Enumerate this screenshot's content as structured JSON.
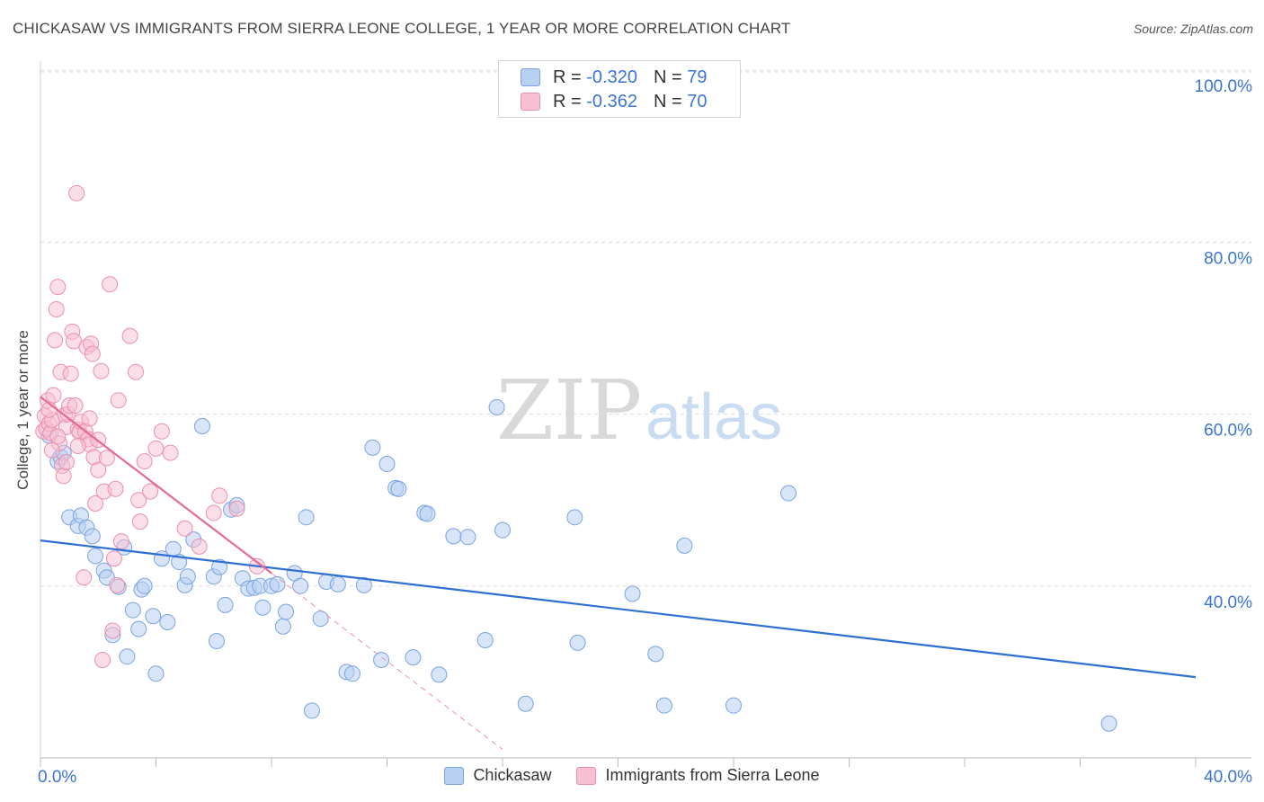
{
  "title": "CHICKASAW VS IMMIGRANTS FROM SIERRA LEONE COLLEGE, 1 YEAR OR MORE CORRELATION CHART",
  "source": "Source: ZipAtlas.com",
  "watermark": {
    "zip": "ZIP",
    "atlas": "atlas"
  },
  "stats": [
    {
      "r_label": "R =",
      "r_value": "-0.320",
      "n_label": "N =",
      "n_value": "79"
    },
    {
      "r_label": "R =",
      "r_value": "-0.362",
      "n_label": "N =",
      "n_value": "70"
    }
  ],
  "colors": {
    "blue_fill": "#b8d0f2",
    "blue_edge": "#7aa3e0",
    "blue_line": "#2e6fd4",
    "pink_fill": "#f7c0d2",
    "pink_edge": "#eb8fae",
    "pink_line": "#e36a94",
    "accent": "#3a74d4"
  },
  "chart_data": {
    "type": "scatter",
    "title": "CHICKASAW VS IMMIGRANTS FROM SIERRA LEONE COLLEGE, 1 YEAR OR MORE CORRELATION CHART",
    "xlabel": "",
    "ylabel": "College, 1 year or more",
    "xlim": [
      0,
      40
    ],
    "ylim": [
      20,
      104
    ],
    "x_tick_labels": [
      {
        "value": 0,
        "label": "0.0%"
      },
      {
        "value": 40,
        "label": "40.0%"
      }
    ],
    "y_tick_labels": [
      {
        "value": 40,
        "label": "40.0%"
      },
      {
        "value": 60,
        "label": "60.0%"
      },
      {
        "value": 80,
        "label": "80.0%"
      },
      {
        "value": 100,
        "label": "100.0%"
      }
    ],
    "legend_position": "bottom",
    "series": [
      {
        "name": "Chickasaw",
        "trend": {
          "x0": 0,
          "y0": 45.3,
          "x1": 40,
          "y1": 29.4
        },
        "points": [
          [
            0.3,
            57.5
          ],
          [
            0.6,
            54.5
          ],
          [
            0.7,
            55.0
          ],
          [
            0.8,
            55.5
          ],
          [
            1.0,
            48.0
          ],
          [
            1.3,
            47.0
          ],
          [
            1.4,
            48.2
          ],
          [
            1.6,
            46.8
          ],
          [
            1.8,
            45.8
          ],
          [
            1.9,
            43.5
          ],
          [
            2.2,
            41.8
          ],
          [
            2.3,
            41.0
          ],
          [
            2.5,
            34.3
          ],
          [
            2.7,
            39.9
          ],
          [
            2.9,
            44.5
          ],
          [
            3.0,
            31.8
          ],
          [
            3.2,
            37.2
          ],
          [
            3.5,
            39.6
          ],
          [
            3.6,
            40.0
          ],
          [
            3.9,
            36.5
          ],
          [
            4.0,
            29.8
          ],
          [
            4.2,
            43.2
          ],
          [
            4.4,
            35.8
          ],
          [
            4.6,
            44.3
          ],
          [
            4.8,
            42.8
          ],
          [
            5.0,
            40.1
          ],
          [
            5.1,
            41.1
          ],
          [
            5.3,
            45.4
          ],
          [
            5.6,
            58.6
          ],
          [
            6.0,
            41.1
          ],
          [
            6.1,
            33.6
          ],
          [
            6.2,
            42.2
          ],
          [
            6.4,
            37.8
          ],
          [
            6.6,
            48.9
          ],
          [
            6.8,
            49.4
          ],
          [
            7.0,
            40.9
          ],
          [
            7.2,
            39.7
          ],
          [
            7.4,
            39.8
          ],
          [
            7.6,
            40.0
          ],
          [
            7.7,
            37.5
          ],
          [
            8.0,
            40.0
          ],
          [
            8.2,
            40.2
          ],
          [
            8.4,
            35.3
          ],
          [
            8.5,
            37.0
          ],
          [
            8.8,
            41.5
          ],
          [
            9.0,
            40.0
          ],
          [
            9.2,
            48.0
          ],
          [
            9.4,
            25.5
          ],
          [
            9.7,
            36.2
          ],
          [
            9.9,
            40.5
          ],
          [
            10.3,
            40.2
          ],
          [
            10.6,
            30.0
          ],
          [
            10.8,
            29.8
          ],
          [
            11.2,
            40.1
          ],
          [
            11.5,
            56.1
          ],
          [
            11.8,
            31.4
          ],
          [
            12.0,
            54.2
          ],
          [
            12.3,
            51.4
          ],
          [
            12.4,
            51.3
          ],
          [
            12.9,
            31.7
          ],
          [
            13.3,
            48.5
          ],
          [
            13.4,
            48.4
          ],
          [
            13.8,
            29.7
          ],
          [
            14.3,
            45.8
          ],
          [
            14.8,
            45.7
          ],
          [
            15.4,
            33.7
          ],
          [
            15.8,
            60.8
          ],
          [
            16.0,
            46.5
          ],
          [
            16.8,
            26.3
          ],
          [
            18.5,
            48.0
          ],
          [
            18.6,
            33.4
          ],
          [
            20.5,
            39.1
          ],
          [
            21.3,
            32.1
          ],
          [
            21.6,
            26.1
          ],
          [
            22.3,
            44.7
          ],
          [
            24.0,
            26.1
          ],
          [
            25.9,
            50.8
          ],
          [
            37.0,
            24.0
          ],
          [
            3.4,
            35.0
          ]
        ]
      },
      {
        "name": "Immigrants from Sierra Leone",
        "trend": {
          "x0": 0,
          "y0": 62.0,
          "x1": 8.0,
          "y1": 41.5
        },
        "trend_ext": {
          "x0": 8.0,
          "y0": 41.5,
          "x1": 16.0,
          "y1": 21.0
        },
        "points": [
          [
            0.1,
            58.0
          ],
          [
            0.15,
            59.8
          ],
          [
            0.2,
            58.3
          ],
          [
            0.25,
            61.6
          ],
          [
            0.3,
            58.9
          ],
          [
            0.35,
            57.8
          ],
          [
            0.4,
            59.3
          ],
          [
            0.45,
            62.2
          ],
          [
            0.5,
            68.6
          ],
          [
            0.55,
            72.2
          ],
          [
            0.6,
            74.8
          ],
          [
            0.65,
            56.6
          ],
          [
            0.7,
            64.9
          ],
          [
            0.75,
            54.0
          ],
          [
            0.8,
            52.8
          ],
          [
            0.85,
            59.9
          ],
          [
            0.9,
            58.5
          ],
          [
            0.95,
            60.0
          ],
          [
            1.0,
            61.0
          ],
          [
            1.05,
            64.7
          ],
          [
            1.1,
            69.6
          ],
          [
            1.15,
            68.5
          ],
          [
            1.2,
            61.0
          ],
          [
            1.25,
            85.7
          ],
          [
            1.3,
            58.2
          ],
          [
            1.35,
            57.9
          ],
          [
            1.4,
            59.1
          ],
          [
            1.5,
            41.0
          ],
          [
            1.55,
            58.0
          ],
          [
            1.6,
            67.8
          ],
          [
            1.65,
            57.1
          ],
          [
            1.7,
            56.5
          ],
          [
            1.75,
            68.2
          ],
          [
            1.8,
            67.0
          ],
          [
            1.85,
            55.0
          ],
          [
            1.9,
            49.6
          ],
          [
            2.0,
            57.0
          ],
          [
            2.1,
            65.0
          ],
          [
            2.15,
            31.4
          ],
          [
            2.2,
            51.0
          ],
          [
            2.3,
            54.9
          ],
          [
            2.4,
            75.1
          ],
          [
            2.5,
            34.8
          ],
          [
            2.55,
            43.2
          ],
          [
            2.6,
            51.3
          ],
          [
            2.65,
            40.1
          ],
          [
            2.7,
            61.6
          ],
          [
            3.1,
            69.1
          ],
          [
            3.3,
            64.9
          ],
          [
            3.4,
            50.0
          ],
          [
            3.45,
            47.5
          ],
          [
            3.6,
            54.5
          ],
          [
            3.8,
            51.0
          ],
          [
            4.0,
            56.0
          ],
          [
            4.2,
            58.0
          ],
          [
            4.5,
            55.5
          ],
          [
            5.0,
            46.7
          ],
          [
            5.5,
            44.6
          ],
          [
            6.0,
            48.5
          ],
          [
            6.2,
            50.5
          ],
          [
            6.8,
            49.0
          ],
          [
            7.5,
            42.3
          ],
          [
            0.4,
            55.8
          ],
          [
            0.6,
            57.4
          ],
          [
            0.9,
            54.4
          ],
          [
            1.3,
            56.3
          ],
          [
            1.7,
            59.5
          ],
          [
            2.0,
            53.5
          ],
          [
            2.8,
            45.2
          ],
          [
            0.3,
            60.5
          ]
        ]
      }
    ]
  }
}
